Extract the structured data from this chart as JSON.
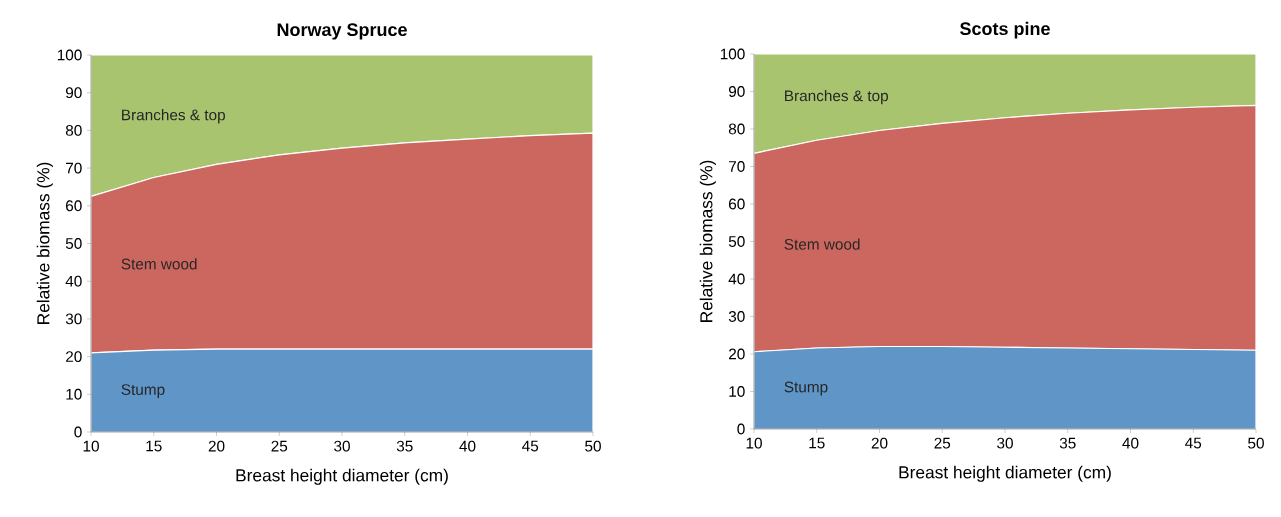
{
  "chart_data": [
    {
      "type": "area",
      "title": "Norway Spruce",
      "xlabel": "Breast height diameter (cm)",
      "ylabel": "Relative biomass (%)",
      "stacked": true,
      "x": [
        10,
        15,
        20,
        25,
        30,
        35,
        40,
        45,
        50
      ],
      "xlim": [
        10,
        50
      ],
      "ylim": [
        0,
        100
      ],
      "xticks": [
        10,
        15,
        20,
        25,
        30,
        35,
        40,
        45,
        50
      ],
      "yticks": [
        0,
        10,
        20,
        30,
        40,
        50,
        60,
        70,
        80,
        90,
        100
      ],
      "series": [
        {
          "name": "Stump",
          "color": "#5f95c7",
          "values": [
            21,
            21.7,
            22,
            22,
            22,
            22,
            22,
            22,
            22
          ]
        },
        {
          "name": "Stem wood",
          "color": "#cc6760",
          "values": [
            41.5,
            45.8,
            49,
            51.5,
            53.3,
            54.7,
            55.7,
            56.6,
            57.3
          ]
        },
        {
          "name": "Branches & top",
          "color": "#a9c46e",
          "values": [
            37.5,
            32.5,
            29,
            26.5,
            24.7,
            23.3,
            22.3,
            21.4,
            20.7
          ]
        }
      ]
    },
    {
      "type": "area",
      "title": "Scots pine",
      "xlabel": "Breast height diameter (cm)",
      "ylabel": "Relative biomass (%)",
      "stacked": true,
      "x": [
        10,
        15,
        20,
        25,
        30,
        35,
        40,
        45,
        50
      ],
      "xlim": [
        10,
        50
      ],
      "ylim": [
        0,
        100
      ],
      "xticks": [
        10,
        15,
        20,
        25,
        30,
        35,
        40,
        45,
        50
      ],
      "yticks": [
        0,
        10,
        20,
        30,
        40,
        50,
        60,
        70,
        80,
        90,
        100
      ],
      "series": [
        {
          "name": "Stump",
          "color": "#5f95c7",
          "values": [
            20.6,
            21.6,
            22,
            22,
            21.8,
            21.6,
            21.4,
            21.2,
            21
          ]
        },
        {
          "name": "Stem wood",
          "color": "#cc6760",
          "values": [
            52.9,
            55.4,
            57.6,
            59.5,
            61.2,
            62.6,
            63.7,
            64.6,
            65.3
          ]
        },
        {
          "name": "Branches & top",
          "color": "#a9c46e",
          "values": [
            26.5,
            23,
            20.4,
            18.5,
            17,
            15.8,
            14.9,
            14.2,
            13.7
          ]
        }
      ]
    }
  ]
}
